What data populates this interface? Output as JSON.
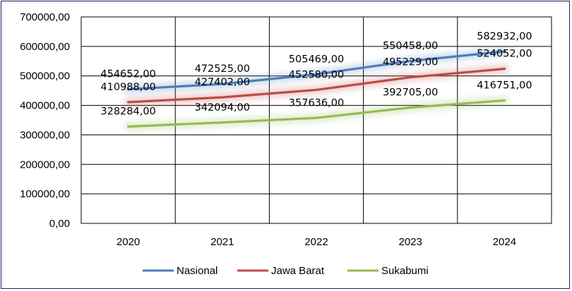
{
  "chart_data": {
    "type": "line",
    "title": "",
    "xlabel": "",
    "ylabel": "",
    "categories": [
      "2020",
      "2021",
      "2022",
      "2023",
      "2024"
    ],
    "ylim": [
      0,
      700000
    ],
    "yticks": [
      0,
      100000,
      200000,
      300000,
      400000,
      500000,
      600000,
      700000
    ],
    "ytick_labels": [
      "0,00",
      "100000,00",
      "200000,00",
      "300000,00",
      "400000,00",
      "500000,00",
      "600000,00",
      "700000,00"
    ],
    "grid": true,
    "legend_position": "bottom",
    "series": [
      {
        "name": "Nasional",
        "color": "#4a7ebb",
        "values": [
          454652,
          472525,
          505469,
          550458,
          582932
        ],
        "labels": [
          "454652,00",
          "472525,00",
          "505469,00",
          "550458,00",
          "582932,00"
        ]
      },
      {
        "name": "Jawa Barat",
        "color": "#be4b48",
        "values": [
          410988,
          427402,
          452580,
          495229,
          524052
        ],
        "labels": [
          "410988,00",
          "427402,00",
          "452580,00",
          "495229,00",
          "524052,00"
        ]
      },
      {
        "name": "Sukabumi",
        "color": "#98b954",
        "values": [
          328284,
          342094,
          357636,
          392705,
          416751
        ],
        "labels": [
          "328284,00",
          "342094,00",
          "357636,00",
          "392705,00",
          "416751,00"
        ]
      }
    ]
  }
}
